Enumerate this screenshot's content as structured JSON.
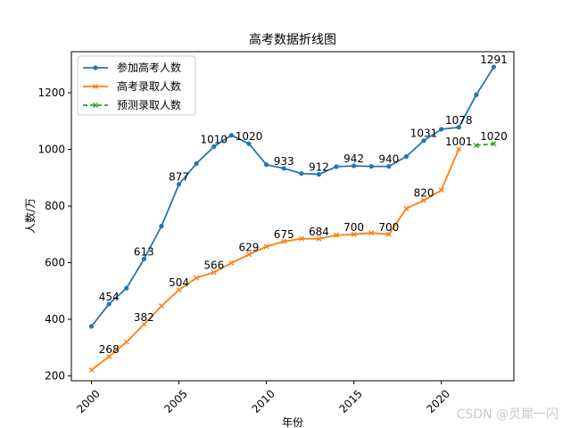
{
  "chart_data": {
    "type": "line",
    "title": "高考数据折线图",
    "xlabel": "年份",
    "ylabel": "人数/万",
    "xlim": [
      1998.85,
      2024.15
    ],
    "ylim": [
      183,
      1345
    ],
    "x_ticks": [
      2000,
      2005,
      2010,
      2015,
      2020
    ],
    "y_ticks": [
      200,
      400,
      600,
      800,
      1000,
      1200
    ],
    "legend_position": "top-left",
    "series": [
      {
        "name": "参加高考人数",
        "color": "#1f77b4",
        "marker": "circle",
        "line_style": "solid",
        "x": [
          2000,
          2001,
          2002,
          2003,
          2004,
          2005,
          2006,
          2007,
          2008,
          2009,
          2010,
          2011,
          2012,
          2013,
          2014,
          2015,
          2016,
          2017,
          2018,
          2019,
          2020,
          2021,
          2022,
          2023
        ],
        "values": [
          375,
          454,
          510,
          613,
          729,
          877,
          950,
          1010,
          1050,
          1020,
          946,
          933,
          915,
          912,
          939,
          942,
          940,
          940,
          975,
          1031,
          1071,
          1078,
          1193,
          1291
        ],
        "annotations": [
          {
            "x": 2001,
            "y": 454,
            "label": "454"
          },
          {
            "x": 2003,
            "y": 613,
            "label": "613"
          },
          {
            "x": 2005,
            "y": 877,
            "label": "877"
          },
          {
            "x": 2007,
            "y": 1010,
            "label": "1010"
          },
          {
            "x": 2009,
            "y": 1020,
            "label": "1020"
          },
          {
            "x": 2011,
            "y": 933,
            "label": "933"
          },
          {
            "x": 2013,
            "y": 912,
            "label": "912"
          },
          {
            "x": 2015,
            "y": 942,
            "label": "942"
          },
          {
            "x": 2017,
            "y": 940,
            "label": "940"
          },
          {
            "x": 2019,
            "y": 1031,
            "label": "1031"
          },
          {
            "x": 2021,
            "y": 1078,
            "label": "1078"
          },
          {
            "x": 2023,
            "y": 1291,
            "label": "1291"
          }
        ]
      },
      {
        "name": "高考录取人数",
        "color": "#ff7f0e",
        "marker": "x",
        "line_style": "solid",
        "x": [
          2000,
          2001,
          2002,
          2003,
          2004,
          2005,
          2006,
          2007,
          2008,
          2009,
          2010,
          2011,
          2012,
          2013,
          2014,
          2015,
          2016,
          2017,
          2018,
          2019,
          2020,
          2021
        ],
        "values": [
          221,
          268,
          320,
          382,
          447,
          504,
          546,
          566,
          599,
          629,
          657,
          675,
          685,
          684,
          697,
          700,
          705,
          700,
          791,
          820,
          856,
          1001
        ],
        "annotations": [
          {
            "x": 2001,
            "y": 268,
            "label": "268"
          },
          {
            "x": 2003,
            "y": 382,
            "label": "382"
          },
          {
            "x": 2005,
            "y": 504,
            "label": "504"
          },
          {
            "x": 2007,
            "y": 566,
            "label": "566"
          },
          {
            "x": 2009,
            "y": 629,
            "label": "629"
          },
          {
            "x": 2011,
            "y": 675,
            "label": "675"
          },
          {
            "x": 2013,
            "y": 684,
            "label": "684"
          },
          {
            "x": 2015,
            "y": 700,
            "label": "700"
          },
          {
            "x": 2017,
            "y": 700,
            "label": "700"
          },
          {
            "x": 2019,
            "y": 820,
            "label": "820"
          },
          {
            "x": 2021,
            "y": 1001,
            "label": "1001"
          }
        ]
      },
      {
        "name": "预测录取人数",
        "color": "#2ca02c",
        "marker": "x",
        "line_style": "dashed",
        "x": [
          2022,
          2023
        ],
        "values": [
          1014,
          1020
        ],
        "annotations": [
          {
            "x": 2023,
            "y": 1020,
            "label": "1020"
          }
        ]
      }
    ]
  },
  "watermark": "CSDN @灵犀一闪"
}
